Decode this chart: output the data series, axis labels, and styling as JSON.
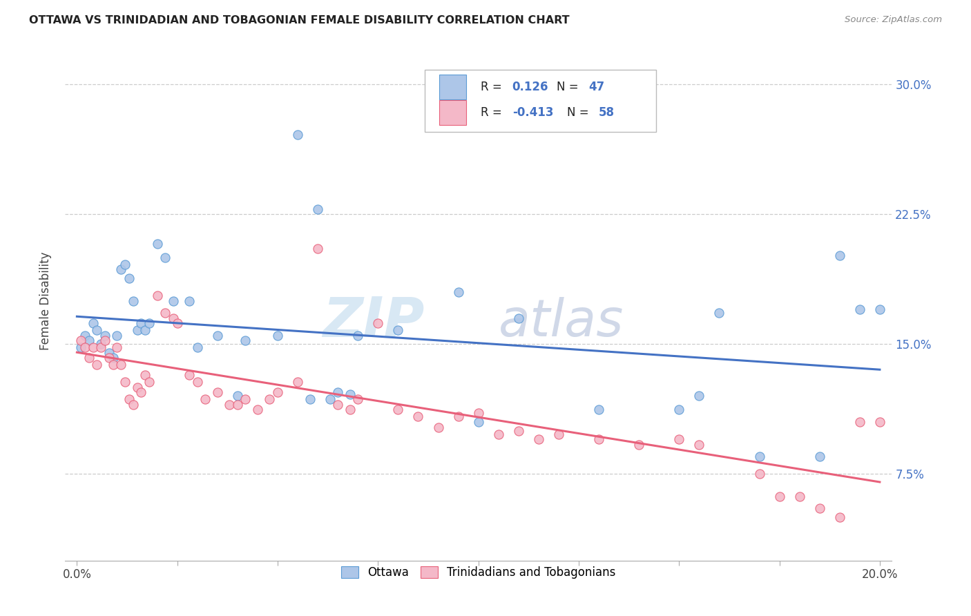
{
  "title": "OTTAWA VS TRINIDADIAN AND TOBAGONIAN FEMALE DISABILITY CORRELATION CHART",
  "source": "Source: ZipAtlas.com",
  "ylabel": "Female Disability",
  "ytick_vals": [
    0.075,
    0.15,
    0.225,
    0.3
  ],
  "ytick_labels": [
    "7.5%",
    "15.0%",
    "22.5%",
    "30.0%"
  ],
  "xtick_vals": [
    0.0,
    0.025,
    0.05,
    0.075,
    0.1,
    0.125,
    0.15,
    0.175,
    0.2
  ],
  "ottawa_color": "#adc6e8",
  "ottawa_edge": "#5b9bd5",
  "trinidad_color": "#f4b8c8",
  "trinidad_edge": "#e8607a",
  "line_ottawa_color": "#4472c4",
  "line_trinidad_color": "#e8607a",
  "ottawa_x": [
    0.001,
    0.002,
    0.003,
    0.004,
    0.005,
    0.006,
    0.007,
    0.008,
    0.009,
    0.01,
    0.011,
    0.012,
    0.013,
    0.014,
    0.015,
    0.016,
    0.017,
    0.018,
    0.02,
    0.022,
    0.024,
    0.028,
    0.03,
    0.035,
    0.04,
    0.042,
    0.05,
    0.055,
    0.058,
    0.06,
    0.063,
    0.065,
    0.068,
    0.07,
    0.08,
    0.095,
    0.1,
    0.11,
    0.13,
    0.15,
    0.155,
    0.16,
    0.17,
    0.185,
    0.19,
    0.195,
    0.2
  ],
  "ottawa_y": [
    0.148,
    0.155,
    0.152,
    0.162,
    0.158,
    0.15,
    0.155,
    0.145,
    0.142,
    0.155,
    0.193,
    0.196,
    0.188,
    0.175,
    0.158,
    0.162,
    0.158,
    0.162,
    0.208,
    0.2,
    0.175,
    0.175,
    0.148,
    0.155,
    0.12,
    0.152,
    0.155,
    0.271,
    0.118,
    0.228,
    0.118,
    0.122,
    0.121,
    0.155,
    0.158,
    0.18,
    0.105,
    0.165,
    0.112,
    0.112,
    0.12,
    0.168,
    0.085,
    0.085,
    0.201,
    0.17,
    0.17
  ],
  "trinidad_x": [
    0.001,
    0.002,
    0.003,
    0.004,
    0.005,
    0.006,
    0.007,
    0.008,
    0.009,
    0.01,
    0.011,
    0.012,
    0.013,
    0.014,
    0.015,
    0.016,
    0.017,
    0.018,
    0.02,
    0.022,
    0.024,
    0.025,
    0.028,
    0.03,
    0.032,
    0.035,
    0.038,
    0.04,
    0.042,
    0.045,
    0.048,
    0.05,
    0.055,
    0.06,
    0.065,
    0.068,
    0.07,
    0.075,
    0.08,
    0.085,
    0.09,
    0.095,
    0.1,
    0.105,
    0.11,
    0.115,
    0.12,
    0.13,
    0.14,
    0.15,
    0.155,
    0.17,
    0.175,
    0.18,
    0.185,
    0.19,
    0.195,
    0.2
  ],
  "trinidad_y": [
    0.152,
    0.148,
    0.142,
    0.148,
    0.138,
    0.148,
    0.152,
    0.142,
    0.138,
    0.148,
    0.138,
    0.128,
    0.118,
    0.115,
    0.125,
    0.122,
    0.132,
    0.128,
    0.178,
    0.168,
    0.165,
    0.162,
    0.132,
    0.128,
    0.118,
    0.122,
    0.115,
    0.115,
    0.118,
    0.112,
    0.118,
    0.122,
    0.128,
    0.205,
    0.115,
    0.112,
    0.118,
    0.162,
    0.112,
    0.108,
    0.102,
    0.108,
    0.11,
    0.098,
    0.1,
    0.095,
    0.098,
    0.095,
    0.092,
    0.095,
    0.092,
    0.075,
    0.062,
    0.062,
    0.055,
    0.05,
    0.105,
    0.105
  ],
  "watermark_zip_color": "#d8e8f4",
  "watermark_atlas_color": "#d0d8e8"
}
